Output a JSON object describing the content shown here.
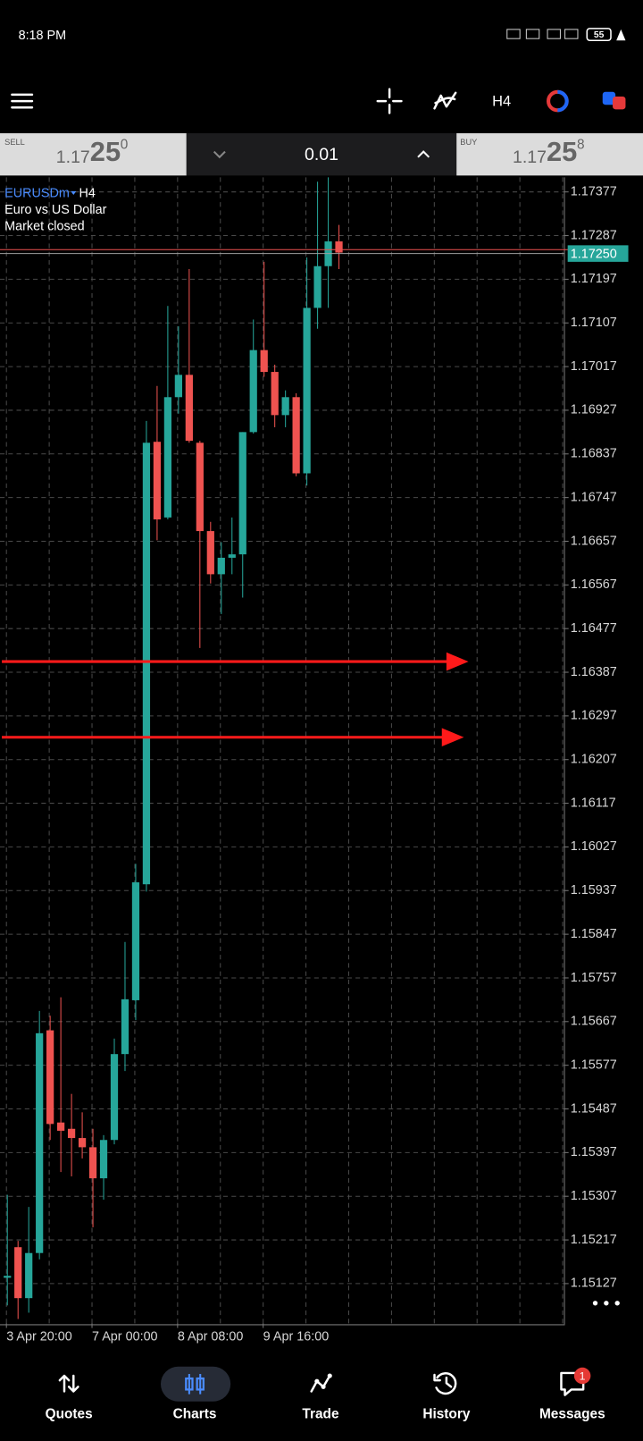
{
  "status_bar": {
    "time": "8:18 PM",
    "battery": "55"
  },
  "toolbar": {
    "timeframe": "H4"
  },
  "trade_bar": {
    "sell_label": "SELL",
    "sell_price": {
      "prefix": "1.17",
      "pips": "25",
      "point": "0"
    },
    "volume": "0.01",
    "buy_label": "BUY",
    "buy_price": {
      "prefix": "1.17",
      "pips": "25",
      "point": "8"
    }
  },
  "chart_info": {
    "symbol": "EURUSDm",
    "timeframe": "H4",
    "description": "Euro vs US Dollar",
    "status": "Market closed"
  },
  "chart_data": {
    "type": "candlestick",
    "up_color": "#26a69a",
    "down_color": "#ef5350",
    "grid": true,
    "ylim": [
      1.15045,
      1.17407
    ],
    "yticks": [
      1.17377,
      1.17287,
      1.17197,
      1.17107,
      1.17017,
      1.16927,
      1.16837,
      1.16747,
      1.16657,
      1.16567,
      1.16477,
      1.16387,
      1.16297,
      1.16207,
      1.16117,
      1.16027,
      1.15937,
      1.15847,
      1.15757,
      1.15667,
      1.15577,
      1.15487,
      1.15397,
      1.15307,
      1.15217,
      1.15127
    ],
    "categories": [
      "3 Apr 20:00",
      null,
      null,
      null,
      null,
      null,
      null,
      null,
      "7 Apr 00:00",
      null,
      null,
      null,
      null,
      null,
      null,
      null,
      "8 Apr 08:00",
      null,
      null,
      null,
      null,
      null,
      null,
      null,
      "9 Apr 16:00",
      null,
      null,
      null,
      null,
      null,
      null,
      null
    ],
    "open": [
      1.15139,
      1.15202,
      1.15097,
      1.1519,
      1.15649,
      1.15459,
      1.15446,
      1.15427,
      1.15408,
      1.15344,
      1.15423,
      1.156,
      1.15711,
      1.1595,
      1.16862,
      1.16706,
      1.16954,
      1.17,
      1.1686,
      1.16678,
      1.16589,
      1.16623,
      1.1663,
      1.16882,
      1.17051,
      1.17006,
      1.16917,
      1.16954,
      1.16797,
      1.17138,
      1.17224,
      1.17275
    ],
    "high": [
      1.1531,
      1.15215,
      1.15285,
      1.15689,
      1.15679,
      1.15717,
      1.15518,
      1.1548,
      1.15446,
      1.15433,
      1.15632,
      1.15831,
      1.15992,
      1.16905,
      1.16977,
      1.17142,
      1.171,
      1.17218,
      1.16864,
      1.16697,
      1.16655,
      1.16706,
      1.16882,
      1.17114,
      1.17233,
      1.17021,
      1.16968,
      1.16962,
      1.17242,
      1.17398,
      1.17407,
      1.17309
    ],
    "low": [
      1.15082,
      1.15054,
      1.15067,
      1.15177,
      1.15423,
      1.15357,
      1.15348,
      1.15385,
      1.15243,
      1.153,
      1.15414,
      1.15565,
      1.1567,
      1.15935,
      1.16659,
      1.16702,
      1.1692,
      1.1686,
      1.16437,
      1.1657,
      1.16507,
      1.16589,
      1.16541,
      1.16879,
      1.16996,
      1.16892,
      1.16892,
      1.16791,
      1.16772,
      1.17095,
      1.17138,
      1.17218
    ],
    "close": [
      1.15143,
      1.15097,
      1.1519,
      1.15643,
      1.15456,
      1.15442,
      1.15427,
      1.15408,
      1.15344,
      1.15423,
      1.156,
      1.15713,
      1.15954,
      1.1686,
      1.16702,
      1.16954,
      1.17,
      1.16864,
      1.16678,
      1.16589,
      1.16623,
      1.1663,
      1.16882,
      1.17051,
      1.17006,
      1.16917,
      1.16954,
      1.16797,
      1.17138,
      1.17224,
      1.17275,
      1.17252
    ],
    "bid_line": {
      "value": 1.1725,
      "label": "1.17250",
      "color": "#26a69a"
    },
    "ask_line": {
      "value": 1.17258,
      "color": "#ef5350"
    },
    "arrows": {
      "color": "#ff1a1a",
      "values": [
        1.16409,
        1.16253
      ]
    }
  },
  "bottom_nav": {
    "items": [
      "Quotes",
      "Charts",
      "Trade",
      "History",
      "Messages"
    ],
    "active": 1,
    "badge": "1"
  }
}
